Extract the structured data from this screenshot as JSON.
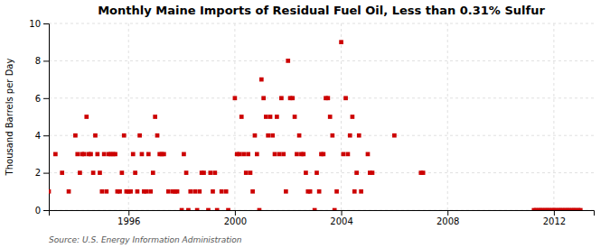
{
  "chart_data": {
    "type": "scatter",
    "title": "Monthly Maine Imports of Residual Fuel Oil, Less than 0.31% Sulfur",
    "y_label": "Thousand Barrels per Day",
    "annotations": [
      "Source: U.S. Energy Information Administration"
    ],
    "color": "#cc0000",
    "marker": "square",
    "grid": true,
    "xlim": [
      1993.0,
      2013.5
    ],
    "xticks": [
      1996,
      2000,
      2004,
      2008,
      2012
    ],
    "ylim": [
      0,
      10
    ],
    "yticks": [
      0,
      2,
      4,
      6,
      8,
      10
    ],
    "x": [
      1993.0,
      1993.25,
      1993.5,
      1993.75,
      1994.0,
      1994.08,
      1994.17,
      1994.25,
      1994.33,
      1994.42,
      1994.5,
      1994.58,
      1994.67,
      1994.75,
      1994.83,
      1994.92,
      1995.0,
      1995.08,
      1995.17,
      1995.25,
      1995.33,
      1995.42,
      1995.5,
      1995.58,
      1995.67,
      1995.75,
      1995.83,
      1995.92,
      1996.0,
      1996.08,
      1996.17,
      1996.25,
      1996.33,
      1996.42,
      1996.5,
      1996.58,
      1996.67,
      1996.75,
      1996.83,
      1996.92,
      1997.0,
      1997.08,
      1997.17,
      1997.25,
      1997.33,
      1997.5,
      1997.67,
      1997.75,
      1997.83,
      1998.0,
      1998.08,
      1998.17,
      1998.25,
      1998.33,
      1998.5,
      1998.58,
      1998.67,
      1998.75,
      1998.83,
      1999.0,
      1999.08,
      1999.17,
      1999.25,
      1999.33,
      1999.5,
      1999.67,
      1999.75,
      2000.0,
      2000.08,
      2000.17,
      2000.25,
      2000.33,
      2000.42,
      2000.5,
      2000.58,
      2000.67,
      2000.75,
      2000.83,
      2000.92,
      2001.0,
      2001.08,
      2001.17,
      2001.25,
      2001.33,
      2001.42,
      2001.5,
      2001.58,
      2001.67,
      2001.75,
      2001.83,
      2001.92,
      2002.0,
      2002.08,
      2002.17,
      2002.25,
      2002.33,
      2002.42,
      2002.5,
      2002.58,
      2002.67,
      2002.75,
      2002.83,
      2003.0,
      2003.08,
      2003.17,
      2003.25,
      2003.33,
      2003.42,
      2003.5,
      2003.58,
      2003.67,
      2003.75,
      2003.83,
      2004.0,
      2004.08,
      2004.17,
      2004.25,
      2004.33,
      2004.42,
      2004.5,
      2004.58,
      2004.67,
      2004.75,
      2005.0,
      2005.08,
      2005.17,
      2006.0,
      2007.0,
      2007.08,
      2011.25,
      2011.33,
      2011.42,
      2011.5,
      2011.58,
      2011.67,
      2011.75,
      2011.83,
      2011.92,
      2012.0,
      2012.08,
      2012.17,
      2012.25,
      2012.33,
      2012.42,
      2012.5,
      2012.58,
      2012.67,
      2012.75,
      2012.83,
      2012.92,
      2013.0
    ],
    "values": [
      1,
      3,
      2,
      1,
      4,
      3,
      2,
      3,
      3,
      5,
      3,
      3,
      2,
      4,
      3,
      2,
      1,
      3,
      1,
      3,
      3,
      3,
      3,
      1,
      1,
      2,
      4,
      1,
      1,
      1,
      3,
      2,
      1,
      4,
      3,
      1,
      1,
      3,
      1,
      2,
      5,
      4,
      3,
      3,
      3,
      1,
      1,
      1,
      1,
      0,
      3,
      2,
      0,
      1,
      1,
      0,
      1,
      2,
      2,
      0,
      2,
      1,
      2,
      0,
      1,
      1,
      0,
      6,
      3,
      3,
      5,
      3,
      2,
      3,
      2,
      1,
      4,
      3,
      0,
      7,
      6,
      5,
      4,
      5,
      4,
      3,
      5,
      3,
      6,
      3,
      1,
      8,
      6,
      6,
      5,
      3,
      4,
      3,
      3,
      2,
      1,
      1,
      0,
      2,
      1,
      3,
      3,
      6,
      6,
      5,
      4,
      0,
      1,
      9,
      3,
      6,
      3,
      4,
      5,
      1,
      2,
      4,
      1,
      3,
      2,
      2,
      4,
      2,
      2,
      0,
      0,
      0,
      0,
      0,
      0,
      0,
      0,
      0,
      0,
      0,
      0,
      0,
      0,
      0,
      0,
      0,
      0,
      0,
      0,
      0,
      0
    ]
  }
}
